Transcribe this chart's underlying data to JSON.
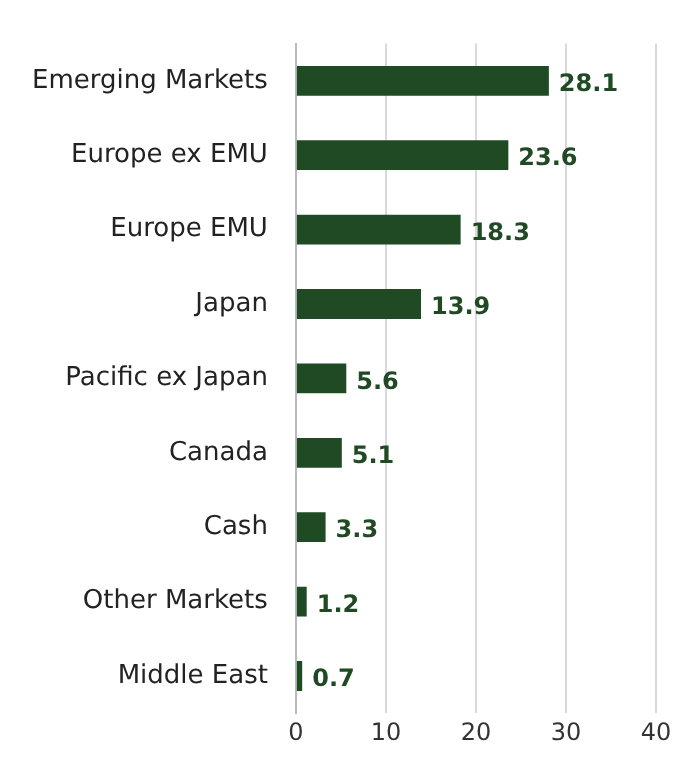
{
  "chart_data": {
    "type": "bar",
    "orientation": "horizontal",
    "categories": [
      "Emerging Markets",
      "Europe ex EMU",
      "Europe EMU",
      "Japan",
      "Pacific ex Japan",
      "Canada",
      "Cash",
      "Other Markets",
      "Middle East"
    ],
    "values": [
      28.1,
      23.6,
      18.3,
      13.9,
      5.6,
      5.1,
      3.3,
      1.2,
      0.7
    ],
    "color": "#1f4a23",
    "xlim": [
      0,
      40
    ],
    "xticks": [
      0,
      10,
      20,
      30,
      40
    ],
    "grid": "x",
    "legend": false,
    "data_labels": true
  }
}
